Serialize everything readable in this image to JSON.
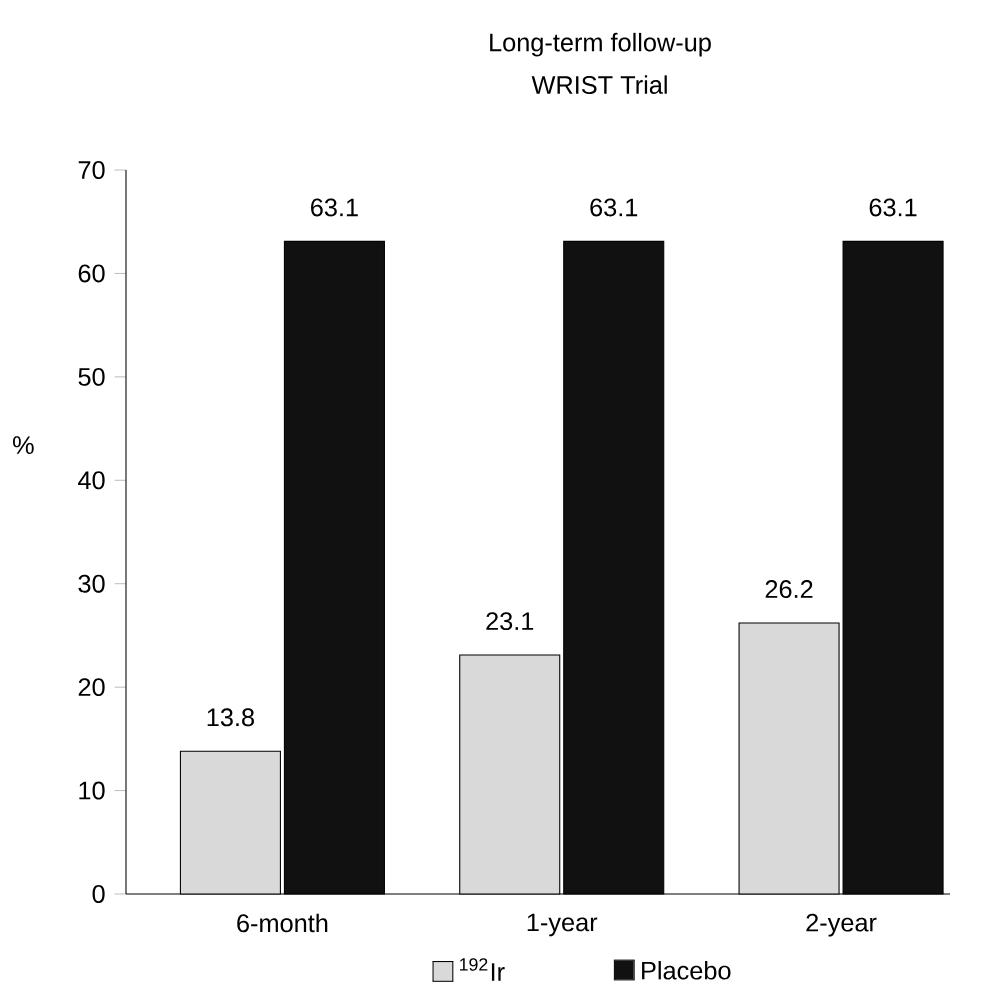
{
  "chart_data": {
    "type": "bar",
    "title": "Long-term follow-up",
    "subtitle": "WRIST Trial",
    "ylabel": "%",
    "categories": [
      "6-month",
      "1-year",
      "2-year"
    ],
    "series": [
      {
        "name": "$^{192}$Ir",
        "color": "#d9d9d9",
        "values": [
          13.8,
          23.1,
          26.2
        ]
      },
      {
        "name": "Placebo",
        "color": "#111111",
        "values": [
          63.1,
          63.1,
          63.1
        ]
      }
    ],
    "ylim": [
      0,
      70
    ],
    "yticks": [
      0,
      10,
      20,
      30,
      40,
      50,
      60,
      70
    ],
    "data_labels": true,
    "legend": "bottom",
    "grid": false
  }
}
